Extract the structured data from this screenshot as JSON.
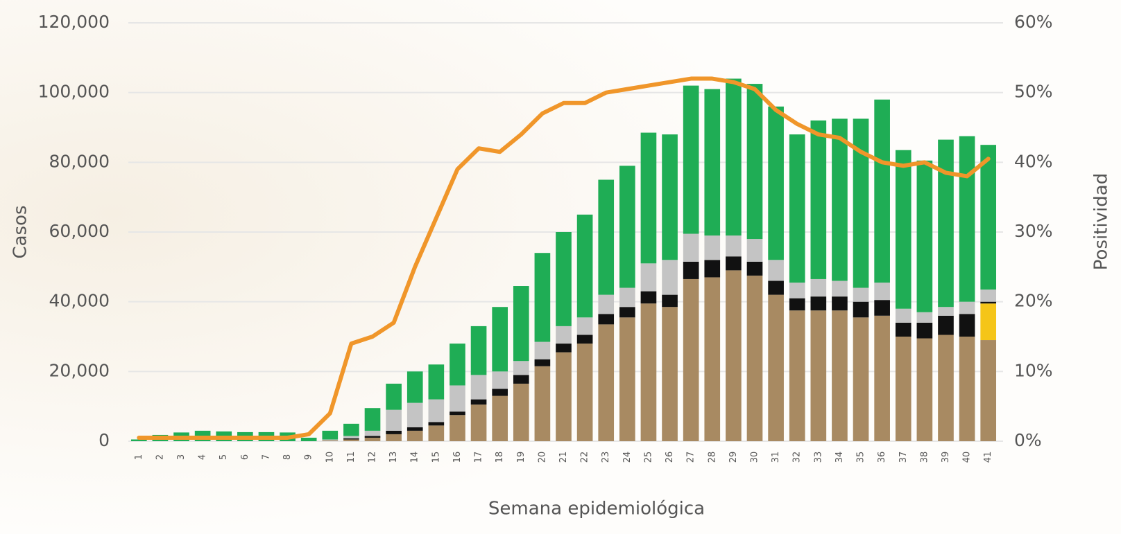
{
  "chart_data": {
    "type": "bar",
    "x_label": "Semana epidemiológica",
    "y_label": "Casos",
    "y2_label": "Positividad",
    "categories": [
      "1",
      "2",
      "3",
      "4",
      "5",
      "6",
      "7",
      "8",
      "9",
      "10",
      "11",
      "12",
      "13",
      "14",
      "15",
      "16",
      "17",
      "18",
      "19",
      "20",
      "21",
      "22",
      "23",
      "24",
      "25",
      "26",
      "27",
      "28",
      "29",
      "30",
      "31",
      "32",
      "33",
      "34",
      "35",
      "36",
      "37",
      "38",
      "39",
      "40",
      "41"
    ],
    "stacked": true,
    "grid": true,
    "series": [
      {
        "color": "#a88a62",
        "values": [
          0,
          0,
          0,
          0,
          0,
          0,
          0,
          0,
          0,
          200,
          500,
          1000,
          2000,
          3000,
          4500,
          7500,
          10500,
          13000,
          16500,
          21500,
          25500,
          28000,
          33500,
          35500,
          39500,
          38500,
          46500,
          47000,
          49000,
          47500,
          42000,
          37500,
          37500,
          37500,
          35500,
          36000,
          30000,
          29500,
          30500,
          30000,
          29000
        ]
      },
      {
        "color": "#f5c518",
        "values": [
          0,
          0,
          0,
          0,
          0,
          0,
          0,
          0,
          0,
          0,
          0,
          0,
          0,
          0,
          0,
          0,
          0,
          0,
          0,
          0,
          0,
          0,
          0,
          0,
          0,
          0,
          0,
          0,
          0,
          0,
          0,
          0,
          0,
          0,
          0,
          0,
          0,
          0,
          0,
          0,
          10500
        ]
      },
      {
        "color": "#111111",
        "values": [
          0,
          0,
          0,
          0,
          0,
          0,
          0,
          0,
          0,
          0,
          300,
          500,
          1000,
          1000,
          1000,
          1000,
          1500,
          2000,
          2500,
          2000,
          2500,
          2500,
          3000,
          3000,
          3500,
          3500,
          5000,
          5000,
          4000,
          4000,
          4000,
          3500,
          4000,
          4000,
          4500,
          4500,
          4000,
          4500,
          5500,
          6500,
          500
        ]
      },
      {
        "color": "#c4c4c4",
        "values": [
          0,
          0,
          0,
          0,
          0,
          0,
          0,
          0,
          0,
          300,
          700,
          1500,
          6000,
          7000,
          6500,
          7500,
          7000,
          5000,
          4000,
          5000,
          5000,
          5000,
          5500,
          5500,
          8000,
          10000,
          8000,
          7000,
          6000,
          6500,
          6000,
          4500,
          5000,
          4500,
          4000,
          5000,
          4000,
          3000,
          2500,
          3500,
          3500
        ]
      },
      {
        "color": "#1fad55",
        "values": [
          500,
          1800,
          2500,
          3000,
          2800,
          2600,
          2600,
          2500,
          1000,
          2500,
          3500,
          6500,
          7500,
          9000,
          10000,
          12000,
          14000,
          18500,
          21500,
          25500,
          27000,
          29500,
          33000,
          35000,
          37500,
          36000,
          42500,
          42000,
          45000,
          44500,
          44000,
          42500,
          45500,
          46500,
          48500,
          52500,
          45500,
          43500,
          48000,
          47500,
          41500
        ]
      },
      {
        "color": "#f0962a",
        "type": "line",
        "axis": "y2",
        "values": [
          0.5,
          0.5,
          0.5,
          0.5,
          0.5,
          0.5,
          0.5,
          0.5,
          1,
          4,
          14,
          15,
          17,
          25,
          32,
          39,
          42,
          41.5,
          44,
          47,
          48.5,
          48.5,
          50,
          50.5,
          51,
          51.5,
          52,
          52,
          51.5,
          50.5,
          47.5,
          45.5,
          44,
          43.5,
          41.5,
          40,
          39.5,
          40,
          38.5,
          38,
          40.5
        ]
      }
    ],
    "ylim": [
      0,
      120000
    ],
    "yticks": [
      0,
      {
        "value": 20000,
        "label": "20,000"
      },
      {
        "value": 40000,
        "label": "40,000"
      },
      {
        "value": 60000,
        "label": "60,000"
      },
      {
        "value": 80000,
        "label": "80,000"
      },
      {
        "value": 100000,
        "label": "100,000"
      },
      {
        "value": 120000,
        "label": "120,000"
      }
    ],
    "y2lim": [
      0,
      60
    ],
    "y2ticks": [
      {
        "value": 0,
        "label": "0%"
      },
      {
        "value": 10,
        "label": "10%"
      },
      {
        "value": 20,
        "label": "20%"
      },
      {
        "value": 30,
        "label": "30%"
      },
      {
        "value": 40,
        "label": "40%"
      },
      {
        "value": 50,
        "label": "50%"
      },
      {
        "value": 60,
        "label": "60%"
      }
    ]
  }
}
